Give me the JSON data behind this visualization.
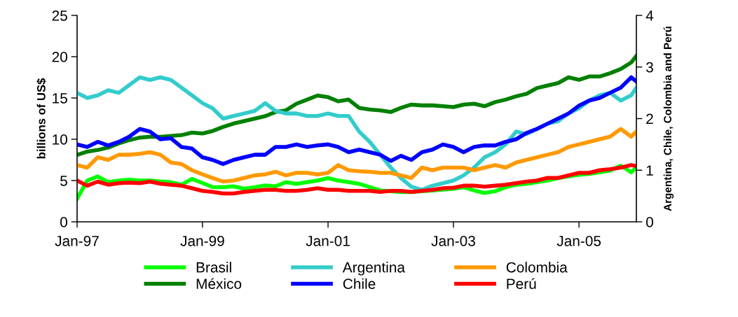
{
  "chart_data": {
    "type": "line",
    "ylabel": "billions of US$",
    "y2label": "Argentina, Chile, Colombia and Perú",
    "x": [
      "1997-01",
      "1997-03",
      "1997-05",
      "1997-07",
      "1997-09",
      "1997-11",
      "1998-01",
      "1998-03",
      "1998-05",
      "1998-07",
      "1998-09",
      "1998-11",
      "1999-01",
      "1999-03",
      "1999-05",
      "1999-07",
      "1999-09",
      "1999-11",
      "2000-01",
      "2000-03",
      "2000-05",
      "2000-07",
      "2000-09",
      "2000-11",
      "2001-01",
      "2001-03",
      "2001-05",
      "2001-07",
      "2001-09",
      "2001-11",
      "2002-01",
      "2002-03",
      "2002-05",
      "2002-07",
      "2002-09",
      "2002-11",
      "2003-01",
      "2003-03",
      "2003-05",
      "2003-07",
      "2003-09",
      "2003-11",
      "2004-01",
      "2004-03",
      "2004-05",
      "2004-07",
      "2004-09",
      "2004-11",
      "2005-01",
      "2005-03",
      "2005-05",
      "2005-07",
      "2005-09",
      "2005-11",
      "2005-12"
    ],
    "xlim": [
      "1997-01",
      "2005-12"
    ],
    "xticks": [
      {
        "value": "1997-01",
        "label": "Jan-97"
      },
      {
        "value": "1999-01",
        "label": "Jan-99"
      },
      {
        "value": "2001-01",
        "label": "Jan-01"
      },
      {
        "value": "2003-01",
        "label": "Jan-03"
      },
      {
        "value": "2005-01",
        "label": "Jan-05"
      }
    ],
    "ylim": [
      0,
      25
    ],
    "yticks": [
      0,
      5,
      10,
      15,
      20,
      25
    ],
    "y2lim": [
      0,
      4
    ],
    "y2ticks": [
      0,
      1,
      2,
      3,
      4
    ],
    "grid": false,
    "legend": "bottom",
    "line_style": "solid",
    "marker": "none",
    "series": [
      {
        "name": "Brasil",
        "color": "#00ff00",
        "values": [
          2.8,
          5.0,
          5.5,
          4.8,
          5.0,
          5.1,
          5.0,
          5.0,
          4.9,
          4.8,
          4.5,
          5.2,
          4.7,
          4.2,
          4.2,
          4.3,
          4.0,
          4.2,
          4.4,
          4.3,
          4.8,
          4.6,
          4.8,
          5.0,
          5.3,
          5.0,
          4.8,
          4.6,
          4.2,
          3.8,
          3.7,
          3.6,
          3.6,
          3.7,
          3.8,
          3.9,
          4.0,
          4.2,
          3.8,
          3.5,
          3.7,
          4.2,
          4.5,
          4.6,
          4.8,
          5.0,
          5.3,
          5.5,
          5.7,
          5.8,
          6.0,
          6.2,
          6.8,
          6.0,
          6.6
        ]
      },
      {
        "name": "México",
        "color": "#008000",
        "values": [
          8.1,
          8.5,
          8.7,
          9.0,
          9.5,
          9.9,
          10.2,
          10.3,
          10.3,
          10.4,
          10.5,
          10.8,
          10.7,
          11.0,
          11.5,
          11.9,
          12.2,
          12.5,
          12.8,
          13.3,
          13.5,
          14.3,
          14.8,
          15.3,
          15.1,
          14.6,
          14.8,
          13.8,
          13.6,
          13.5,
          13.3,
          13.8,
          14.2,
          14.1,
          14.1,
          14.0,
          13.9,
          14.2,
          14.3,
          14.0,
          14.5,
          14.8,
          15.2,
          15.5,
          16.2,
          16.5,
          16.8,
          17.5,
          17.2,
          17.6,
          17.6,
          18.0,
          18.5,
          19.3,
          20.1
        ]
      },
      {
        "name": "Argentina",
        "color": "#33cccc",
        "axis": "y2",
        "values": [
          2.5,
          2.4,
          2.45,
          2.55,
          2.5,
          2.65,
          2.8,
          2.75,
          2.8,
          2.75,
          2.6,
          2.45,
          2.3,
          2.2,
          2.0,
          2.05,
          2.1,
          2.15,
          2.3,
          2.15,
          2.1,
          2.1,
          2.05,
          2.05,
          2.1,
          2.05,
          2.05,
          1.75,
          1.55,
          1.3,
          1.05,
          0.85,
          0.68,
          0.62,
          0.7,
          0.75,
          0.8,
          0.9,
          1.05,
          1.25,
          1.35,
          1.5,
          1.75,
          1.7,
          1.8,
          1.9,
          1.95,
          2.1,
          2.2,
          2.35,
          2.45,
          2.5,
          2.35,
          2.45,
          2.6
        ]
      },
      {
        "name": "Chile",
        "color": "#0000ff",
        "axis": "y2",
        "values": [
          1.5,
          1.45,
          1.55,
          1.48,
          1.55,
          1.65,
          1.8,
          1.75,
          1.6,
          1.62,
          1.45,
          1.42,
          1.25,
          1.2,
          1.12,
          1.2,
          1.25,
          1.3,
          1.3,
          1.45,
          1.45,
          1.5,
          1.45,
          1.48,
          1.5,
          1.45,
          1.35,
          1.4,
          1.35,
          1.3,
          1.18,
          1.28,
          1.2,
          1.35,
          1.4,
          1.5,
          1.45,
          1.35,
          1.45,
          1.48,
          1.48,
          1.55,
          1.6,
          1.72,
          1.8,
          1.9,
          2.0,
          2.1,
          2.25,
          2.35,
          2.4,
          2.5,
          2.6,
          2.8,
          2.72
        ]
      },
      {
        "name": "Colombia",
        "color": "#ff9900",
        "axis": "y2",
        "values": [
          1.1,
          1.05,
          1.25,
          1.2,
          1.3,
          1.3,
          1.32,
          1.35,
          1.3,
          1.15,
          1.12,
          1.0,
          0.92,
          0.85,
          0.78,
          0.8,
          0.85,
          0.9,
          0.92,
          0.97,
          0.9,
          0.95,
          0.95,
          0.92,
          0.95,
          1.1,
          1.0,
          0.98,
          0.97,
          0.95,
          0.95,
          0.9,
          0.85,
          1.05,
          1.0,
          1.05,
          1.05,
          1.05,
          1.0,
          1.05,
          1.1,
          1.05,
          1.15,
          1.2,
          1.25,
          1.3,
          1.35,
          1.45,
          1.5,
          1.55,
          1.6,
          1.65,
          1.8,
          1.65,
          1.75
        ]
      },
      {
        "name": "Perú",
        "color": "#ff0000",
        "axis": "y2",
        "values": [
          0.8,
          0.7,
          0.78,
          0.72,
          0.75,
          0.76,
          0.75,
          0.78,
          0.74,
          0.72,
          0.7,
          0.65,
          0.6,
          0.58,
          0.55,
          0.55,
          0.58,
          0.6,
          0.62,
          0.62,
          0.6,
          0.6,
          0.62,
          0.65,
          0.62,
          0.62,
          0.6,
          0.6,
          0.6,
          0.58,
          0.6,
          0.6,
          0.58,
          0.6,
          0.62,
          0.65,
          0.66,
          0.7,
          0.7,
          0.68,
          0.7,
          0.72,
          0.75,
          0.78,
          0.8,
          0.85,
          0.85,
          0.9,
          0.95,
          0.95,
          1.0,
          1.02,
          1.05,
          1.1,
          1.08
        ]
      }
    ]
  }
}
